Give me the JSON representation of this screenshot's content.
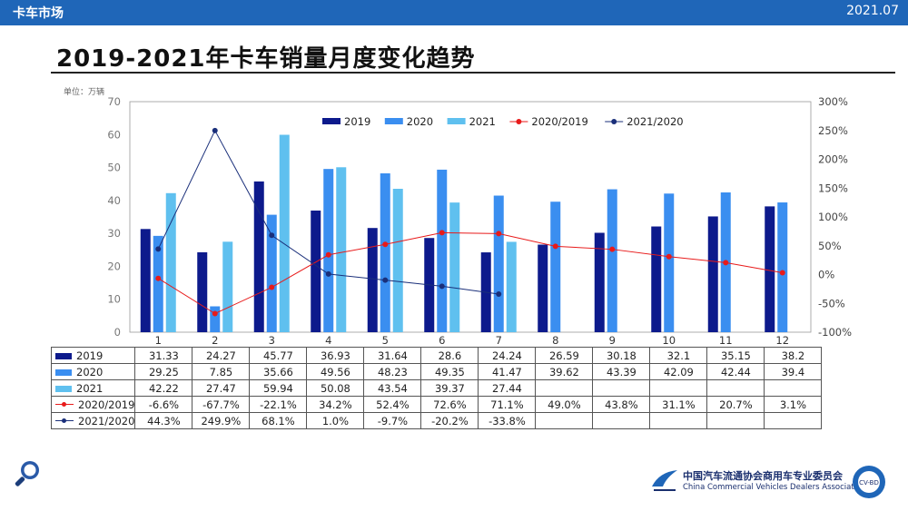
{
  "header": {
    "section": "卡车市场",
    "date": "2021.07"
  },
  "title": "2019-2021年卡车销量月度变化趋势",
  "unit_label": "单位：万辆",
  "footer": {
    "association_cn": "中国汽车流通协会商用车专业委员会",
    "association_en": "China Commercial Vehicles Dealers Association",
    "badge_text": "CV-BD"
  },
  "colors": {
    "s2019": "#0d1a8c",
    "s2020": "#3a8ef0",
    "s2021": "#5fc0ef",
    "r1": "#e81a1a",
    "r2": "#1a2f7a",
    "header": "#1f66b8"
  },
  "chart_data": {
    "type": "bar",
    "categories": [
      "1",
      "2",
      "3",
      "4",
      "5",
      "6",
      "7",
      "8",
      "9",
      "10",
      "11",
      "12"
    ],
    "series": [
      {
        "name": "2019",
        "type": "bar",
        "axis": "left",
        "values": [
          31.33,
          24.27,
          45.77,
          36.93,
          31.64,
          28.6,
          24.24,
          26.59,
          30.18,
          32.1,
          35.15,
          38.2
        ],
        "labels": [
          "31.33",
          "24.27",
          "45.77",
          "36.93",
          "31.64",
          "28.6",
          "24.24",
          "26.59",
          "30.18",
          "32.1",
          "35.15",
          "38.2"
        ]
      },
      {
        "name": "2020",
        "type": "bar",
        "axis": "left",
        "values": [
          29.25,
          7.85,
          35.66,
          49.56,
          48.23,
          49.35,
          41.47,
          39.62,
          43.39,
          42.09,
          42.44,
          39.4
        ],
        "labels": [
          "29.25",
          "7.85",
          "35.66",
          "49.56",
          "48.23",
          "49.35",
          "41.47",
          "39.62",
          "43.39",
          "42.09",
          "42.44",
          "39.4"
        ]
      },
      {
        "name": "2021",
        "type": "bar",
        "axis": "left",
        "values": [
          42.22,
          27.47,
          59.94,
          50.08,
          43.54,
          39.37,
          27.44,
          null,
          null,
          null,
          null,
          null
        ],
        "labels": [
          "42.22",
          "27.47",
          "59.94",
          "50.08",
          "43.54",
          "39.37",
          "27.44",
          "",
          "",
          "",
          "",
          ""
        ]
      },
      {
        "name": "2020/2019",
        "type": "line",
        "axis": "right",
        "values": [
          -6.6,
          -67.7,
          -22.1,
          34.2,
          52.4,
          72.6,
          71.1,
          49.0,
          43.8,
          31.1,
          20.7,
          3.1
        ],
        "labels": [
          "-6.6%",
          "-67.7%",
          "-22.1%",
          "34.2%",
          "52.4%",
          "72.6%",
          "71.1%",
          "49.0%",
          "43.8%",
          "31.1%",
          "20.7%",
          "3.1%"
        ]
      },
      {
        "name": "2021/2020",
        "type": "line",
        "axis": "right",
        "values": [
          44.3,
          249.9,
          68.1,
          1.0,
          -9.7,
          -20.2,
          -33.8,
          null,
          null,
          null,
          null,
          null
        ],
        "labels": [
          "44.3%",
          "249.9%",
          "68.1%",
          "1.0%",
          "-9.7%",
          "-20.2%",
          "-33.8%",
          "",
          "",
          "",
          "",
          ""
        ]
      }
    ],
    "y_left": {
      "min": 0,
      "max": 70,
      "ticks": [
        "0",
        "10",
        "20",
        "30",
        "40",
        "50",
        "60",
        "70"
      ]
    },
    "y_right": {
      "min": -100,
      "max": 300,
      "ticks": [
        "-100%",
        "-50%",
        "0%",
        "50%",
        "100%",
        "150%",
        "200%",
        "250%",
        "300%"
      ]
    },
    "legend": "top-right",
    "grid": false
  }
}
